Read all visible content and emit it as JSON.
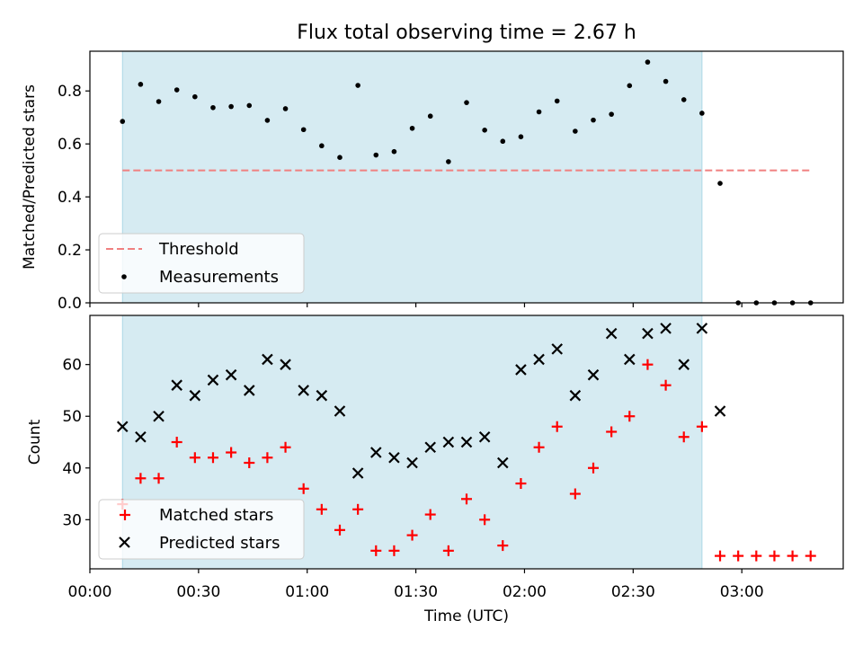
{
  "chart_data": [
    {
      "type": "scatter",
      "title": "Flux total observing time = 2.67 h",
      "xlabel": "",
      "ylabel": "Matched/Predicted stars",
      "xlim": [
        "00:00",
        "03:28"
      ],
      "ylim": [
        0,
        0.95
      ],
      "yticks": [
        0.0,
        0.2,
        0.4,
        0.6,
        0.8
      ],
      "ytick_labels": [
        "0.0",
        "0.2",
        "0.4",
        "0.6",
        "0.8"
      ],
      "shaded_region": {
        "x_start": "00:09",
        "x_end": "02:49",
        "color": "#add8e6"
      },
      "threshold": {
        "name": "Threshold",
        "value": 0.5,
        "x_start": "00:09",
        "x_end": "03:19",
        "color": "#f08080"
      },
      "series": [
        {
          "name": "Measurements",
          "marker": "dot",
          "color": "#000000",
          "points": [
            [
              "00:09",
              0.685
            ],
            [
              "00:14",
              0.825
            ],
            [
              "00:19",
              0.76
            ],
            [
              "00:24",
              0.804
            ],
            [
              "00:29",
              0.778
            ],
            [
              "00:34",
              0.737
            ],
            [
              "00:39",
              0.741
            ],
            [
              "00:44",
              0.745
            ],
            [
              "00:49",
              0.689
            ],
            [
              "00:54",
              0.733
            ],
            [
              "00:59",
              0.654
            ],
            [
              "01:04",
              0.593
            ],
            [
              "01:09",
              0.549
            ],
            [
              "01:14",
              0.821
            ],
            [
              "01:19",
              0.558
            ],
            [
              "01:24",
              0.571
            ],
            [
              "01:29",
              0.659
            ],
            [
              "01:34",
              0.705
            ],
            [
              "01:39",
              0.533
            ],
            [
              "01:44",
              0.756
            ],
            [
              "01:49",
              0.652
            ],
            [
              "01:54",
              0.61
            ],
            [
              "01:59",
              0.627
            ],
            [
              "02:04",
              0.721
            ],
            [
              "02:09",
              0.762
            ],
            [
              "02:14",
              0.648
            ],
            [
              "02:19",
              0.69
            ],
            [
              "02:24",
              0.712
            ],
            [
              "02:29",
              0.82
            ],
            [
              "02:34",
              0.909
            ],
            [
              "02:39",
              0.836
            ],
            [
              "02:44",
              0.767
            ],
            [
              "02:49",
              0.716
            ],
            [
              "02:54",
              0.451
            ],
            [
              "02:59",
              0.0
            ],
            [
              "03:04",
              0.0
            ],
            [
              "03:09",
              0.0
            ],
            [
              "03:14",
              0.0
            ],
            [
              "03:19",
              0.0
            ]
          ]
        }
      ],
      "legend": {
        "placement": "lower-left",
        "entries": [
          "Threshold",
          "Measurements"
        ]
      }
    },
    {
      "type": "scatter",
      "title": "",
      "xlabel": "Time (UTC)",
      "ylabel": "Count",
      "xlim": [
        "00:00",
        "03:28"
      ],
      "ylim": [
        20.5,
        69.5
      ],
      "xticks": [
        "00:00",
        "00:30",
        "01:00",
        "01:30",
        "02:00",
        "02:30",
        "03:00"
      ],
      "yticks": [
        30,
        40,
        50,
        60
      ],
      "shaded_region": {
        "x_start": "00:09",
        "x_end": "02:49",
        "color": "#add8e6"
      },
      "categories": [
        "00:09",
        "00:14",
        "00:19",
        "00:24",
        "00:29",
        "00:34",
        "00:39",
        "00:44",
        "00:49",
        "00:54",
        "00:59",
        "01:04",
        "01:09",
        "01:14",
        "01:19",
        "01:24",
        "01:29",
        "01:34",
        "01:39",
        "01:44",
        "01:49",
        "01:54",
        "01:59",
        "02:04",
        "02:09",
        "02:14",
        "02:19",
        "02:24",
        "02:29",
        "02:34",
        "02:39",
        "02:44",
        "02:49",
        "02:54",
        "02:59",
        "03:04",
        "03:09",
        "03:14",
        "03:19"
      ],
      "series": [
        {
          "name": "Matched stars",
          "marker": "plus",
          "color": "#ff0000",
          "values": [
            33,
            38,
            38,
            45,
            42,
            42,
            43,
            41,
            42,
            44,
            36,
            32,
            28,
            32,
            24,
            24,
            27,
            31,
            24,
            34,
            30,
            25,
            37,
            44,
            48,
            35,
            40,
            47,
            50,
            60,
            56,
            46,
            48,
            23,
            23,
            23,
            23,
            23,
            23
          ]
        },
        {
          "name": "Predicted stars",
          "marker": "x",
          "color": "#000000",
          "values": [
            48,
            46,
            50,
            56,
            54,
            57,
            58,
            55,
            61,
            60,
            55,
            54,
            51,
            39,
            43,
            42,
            41,
            44,
            45,
            45,
            46,
            41,
            59,
            61,
            63,
            54,
            58,
            66,
            61,
            66,
            67,
            60,
            67,
            51,
            null,
            null,
            null,
            null,
            null
          ]
        }
      ],
      "legend": {
        "placement": "lower-left",
        "entries": [
          "Matched stars",
          "Predicted stars"
        ]
      }
    }
  ]
}
